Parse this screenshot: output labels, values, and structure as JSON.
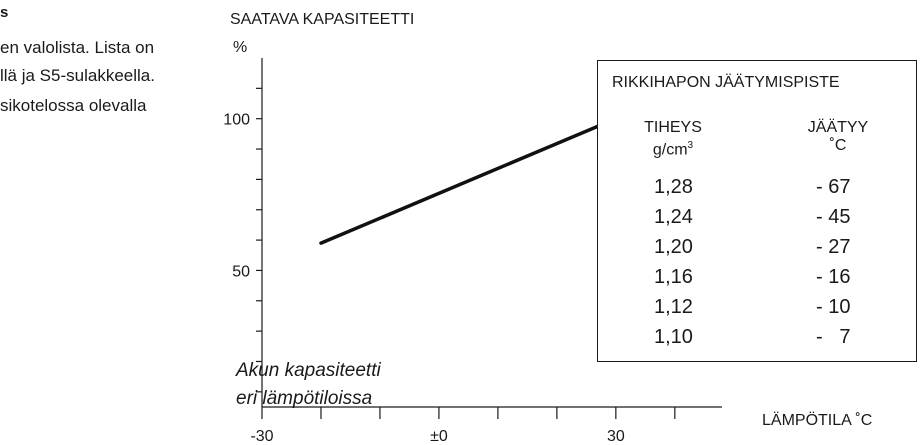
{
  "left_text": {
    "line1": "s",
    "line2": "en valolista. Lista on",
    "line3": "llä ja S5-sulakkeella.",
    "line4": "sikotelossa  olevalla"
  },
  "caption": {
    "line1": "Akun kapasiteetti",
    "line2": "eri lämpötiloissa"
  },
  "chart_data": {
    "type": "line",
    "title": "SAATAVA KAPASITEETTI",
    "ylabel": "%",
    "xlabel": "LÄMPÖTILA ˚C",
    "x_ticklabels": [
      {
        "x": -30,
        "label": "-30"
      },
      {
        "x": 0,
        "label": "±0"
      },
      {
        "x": 30,
        "label": "30"
      }
    ],
    "y_ticklabels": [
      {
        "y": 50,
        "label": "50"
      },
      {
        "y": 100,
        "label": "100"
      }
    ],
    "xlim": [
      -30,
      48
    ],
    "ylim": [
      5,
      120
    ],
    "x_minor_step": 10,
    "y_minor_step": 10,
    "series": [
      {
        "x": [
          -20,
          30
        ],
        "y": [
          59,
          100
        ]
      }
    ],
    "color": "#111111"
  },
  "table": {
    "title": "RIKKIHAPON JÄÄTYMISPISTE",
    "col1_header": "TIHEYS",
    "col1_unit": "g/cm",
    "col1_unit_sup": "3",
    "col2_header": "JÄÄTYY",
    "col2_unit": "˚C",
    "rows": [
      {
        "density": "1,28",
        "freeze": "- 67"
      },
      {
        "density": "1,24",
        "freeze": "- 45"
      },
      {
        "density": "1,20",
        "freeze": "- 27"
      },
      {
        "density": "1,16",
        "freeze": "- 16"
      },
      {
        "density": "1,12",
        "freeze": "- 10"
      },
      {
        "density": "1,10",
        "freeze": "-   7"
      }
    ]
  }
}
